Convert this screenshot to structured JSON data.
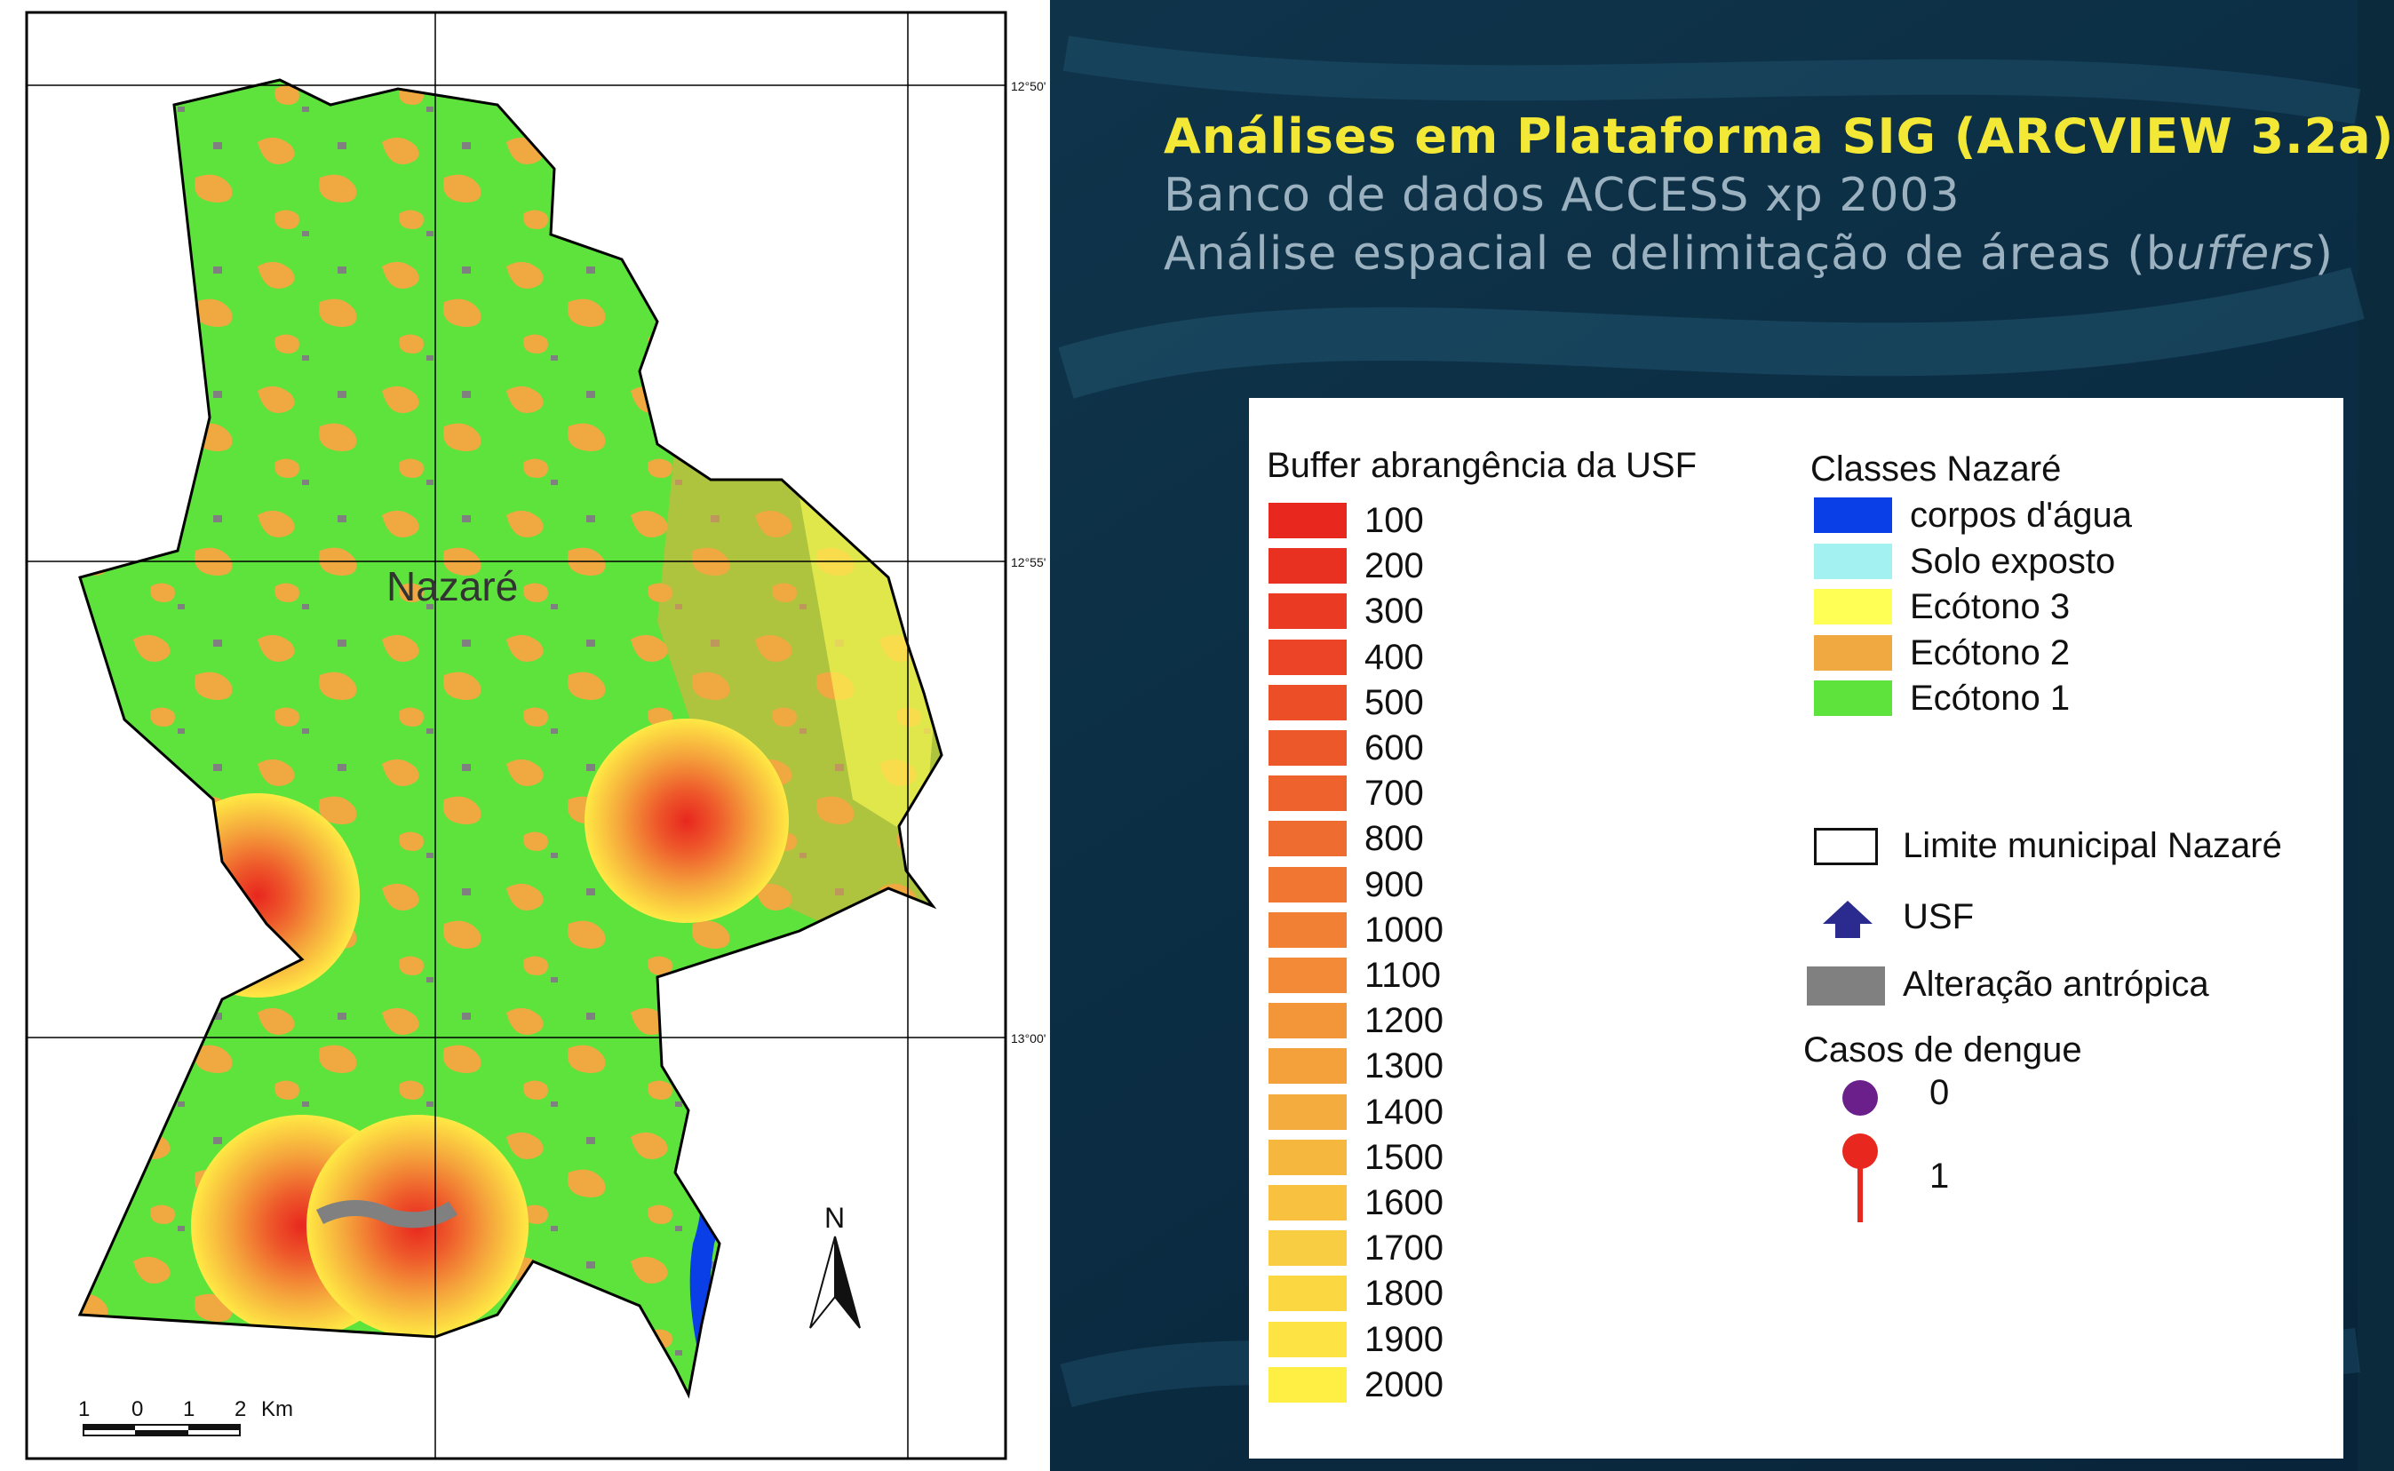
{
  "slide": {
    "title": "Análises em Plataforma SIG (ARCVIEW 3.2a)",
    "subtitle_1": "Banco de dados ACCESS xp 2003",
    "subtitle_2_prefix": "Análise espacial e delimitação de áreas (b",
    "subtitle_2_italic": "uffers",
    "subtitle_2_suffix": ")"
  },
  "map": {
    "place_label": "Nazaré",
    "north_label": "N",
    "scale_labels": [
      "1",
      "0",
      "1",
      "2"
    ],
    "scale_unit": "Km",
    "grid_labels": {
      "top_right": "12°50'",
      "middle_right": "12°55'",
      "bottom_right": "13°00'"
    },
    "colors": {
      "ecotono_1": "#5ee33c",
      "ecotono_2": "#f0a940",
      "ecotono_3": "#ffff55",
      "corpos_agua": "#0a3ee6",
      "solo_exposto": "#a3f1f1",
      "alteracao_antropica": "#808080",
      "buffer_center": "#e8271e",
      "buffer_edge": "#ffee44"
    }
  },
  "legend": {
    "buffer_title": "Buffer  abrangência da USF",
    "buffer_items": [
      {
        "label": "100",
        "color": "#e8271e"
      },
      {
        "label": "200",
        "color": "#e93121"
      },
      {
        "label": "300",
        "color": "#ea3a23"
      },
      {
        "label": "400",
        "color": "#eb4426"
      },
      {
        "label": "500",
        "color": "#ec4e28"
      },
      {
        "label": "600",
        "color": "#ed582b"
      },
      {
        "label": "700",
        "color": "#ee622d"
      },
      {
        "label": "800",
        "color": "#ef6c30"
      },
      {
        "label": "900",
        "color": "#f07632"
      },
      {
        "label": "1000",
        "color": "#f18035"
      },
      {
        "label": "1100",
        "color": "#f28a37"
      },
      {
        "label": "1200",
        "color": "#f3963a"
      },
      {
        "label": "1300",
        "color": "#f4a13c"
      },
      {
        "label": "1400",
        "color": "#f5ac3e"
      },
      {
        "label": "1500",
        "color": "#f6b73f"
      },
      {
        "label": "1600",
        "color": "#f8c240"
      },
      {
        "label": "1700",
        "color": "#f9cd41"
      },
      {
        "label": "1800",
        "color": "#fbd842"
      },
      {
        "label": "1900",
        "color": "#fde343"
      },
      {
        "label": "2000",
        "color": "#ffee44"
      }
    ],
    "classes_title": "Classes Nazaré",
    "class_items": [
      {
        "label": "corpos d'água",
        "color": "#0a3ee6"
      },
      {
        "label": "Solo exposto",
        "color": "#a3f1f1"
      },
      {
        "label": "Ecótono 3",
        "color": "#ffff55"
      },
      {
        "label": "Ecótono 2",
        "color": "#f0a940"
      },
      {
        "label": "Ecótono 1",
        "color": "#5ee33c"
      }
    ],
    "limite_label": "Limite municipal Nazaré",
    "usf_label": "USF",
    "usf_icon": "arrow-up-icon",
    "usf_color": "#2b2b8f",
    "alteracao_label": "Alteração antrópica",
    "alteracao_color": "#808080",
    "dengue_title": "Casos de dengue",
    "dengue_items": [
      {
        "label": "0",
        "icon": "dot-icon",
        "color": "#6a1f8a"
      },
      {
        "label": "1",
        "icon": "pin-icon",
        "color": "#e8271e"
      }
    ]
  }
}
